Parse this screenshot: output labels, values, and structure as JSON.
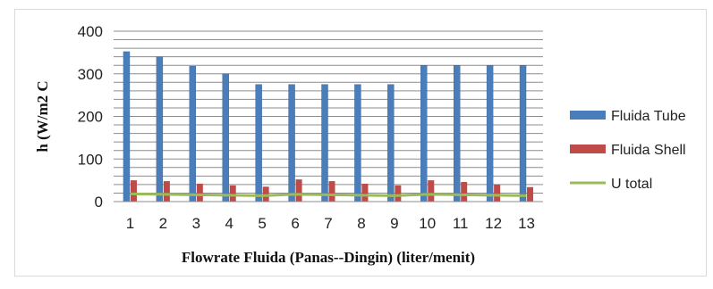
{
  "chart_data": {
    "type": "bar",
    "xlabel": "Flowrate Fluida (Panas--Dingin) (liter/menit)",
    "ylabel": "h  (W/m2 C",
    "ylim": [
      0,
      400
    ],
    "yticks": [
      0,
      100,
      200,
      300,
      400
    ],
    "grid": true,
    "legend_position": "right",
    "categories": [
      "1",
      "2",
      "3",
      "4",
      "5",
      "6",
      "7",
      "8",
      "9",
      "10",
      "11",
      "12",
      "13"
    ],
    "series": [
      {
        "name": "Fluida Tube",
        "type": "bar",
        "color": "#4a7ebb",
        "values": [
          352,
          340,
          318,
          300,
          275,
          275,
          275,
          275,
          275,
          320,
          320,
          320,
          320
        ]
      },
      {
        "name": "Fluida Shell",
        "type": "bar",
        "color": "#be4b48",
        "values": [
          50,
          48,
          42,
          38,
          35,
          52,
          48,
          42,
          38,
          50,
          46,
          40,
          34
        ]
      },
      {
        "name": "U total",
        "type": "line",
        "color": "#9bbb59",
        "values": [
          18,
          17,
          16,
          15,
          14,
          17,
          16,
          15,
          14,
          17,
          16,
          15,
          14
        ]
      }
    ]
  }
}
